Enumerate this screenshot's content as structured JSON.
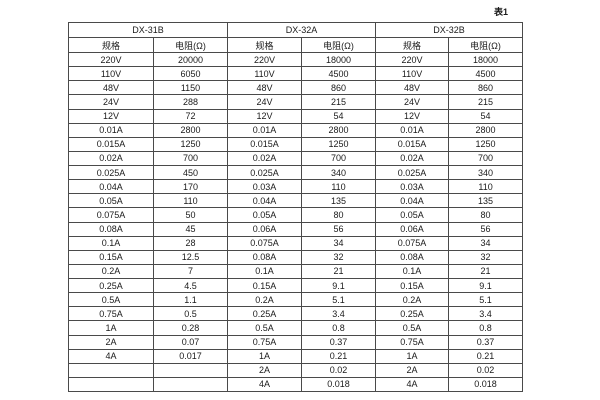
{
  "page": {
    "background": "#ffffff",
    "table_caption": "表1"
  },
  "table": {
    "border_color": "#4a4a4a",
    "text_color": "#1a1a1a",
    "groups": [
      {
        "name": "DX-31B",
        "col_headers": [
          "规格",
          "电阻(Ω)"
        ]
      },
      {
        "name": "DX-32A",
        "col_headers": [
          "规格",
          "电阻(Ω)"
        ]
      },
      {
        "name": "DX-32B",
        "col_headers": [
          "规格",
          "电阻(Ω)"
        ]
      }
    ],
    "rows": [
      [
        "220V",
        "20000",
        "220V",
        "18000",
        "220V",
        "18000"
      ],
      [
        "110V",
        "6050",
        "110V",
        "4500",
        "110V",
        "4500"
      ],
      [
        "48V",
        "1150",
        "48V",
        "860",
        "48V",
        "860"
      ],
      [
        "24V",
        "288",
        "24V",
        "215",
        "24V",
        "215"
      ],
      [
        "12V",
        "72",
        "12V",
        "54",
        "12V",
        "54"
      ],
      [
        "0.01A",
        "2800",
        "0.01A",
        "2800",
        "0.01A",
        "2800"
      ],
      [
        "0.015A",
        "1250",
        "0.015A",
        "1250",
        "0.015A",
        "1250"
      ],
      [
        "0.02A",
        "700",
        "0.02A",
        "700",
        "0.02A",
        "700"
      ],
      [
        "0.025A",
        "450",
        "0.025A",
        "340",
        "0.025A",
        "340"
      ],
      [
        "0.04A",
        "170",
        "0.03A",
        "110",
        "0.03A",
        "110"
      ],
      [
        "0.05A",
        "110",
        "0.04A",
        "135",
        "0.04A",
        "135"
      ],
      [
        "0.075A",
        "50",
        "0.05A",
        "80",
        "0.05A",
        "80"
      ],
      [
        "0.08A",
        "45",
        "0.06A",
        "56",
        "0.06A",
        "56"
      ],
      [
        "0.1A",
        "28",
        "0.075A",
        "34",
        "0.075A",
        "34"
      ],
      [
        "0.15A",
        "12.5",
        "0.08A",
        "32",
        "0.08A",
        "32"
      ],
      [
        "0.2A",
        "7",
        "0.1A",
        "21",
        "0.1A",
        "21"
      ],
      [
        "0.25A",
        "4.5",
        "0.15A",
        "9.1",
        "0.15A",
        "9.1"
      ],
      [
        "0.5A",
        "1.1",
        "0.2A",
        "5.1",
        "0.2A",
        "5.1"
      ],
      [
        "0.75A",
        "0.5",
        "0.25A",
        "3.4",
        "0.25A",
        "3.4"
      ],
      [
        "1A",
        "0.28",
        "0.5A",
        "0.8",
        "0.5A",
        "0.8"
      ],
      [
        "2A",
        "0.07",
        "0.75A",
        "0.37",
        "0.75A",
        "0.37"
      ],
      [
        "4A",
        "0.017",
        "1A",
        "0.21",
        "1A",
        "0.21"
      ],
      [
        "",
        "",
        "2A",
        "0.02",
        "2A",
        "0.02"
      ],
      [
        "",
        "",
        "4A",
        "0.018",
        "4A",
        "0.018"
      ]
    ]
  }
}
